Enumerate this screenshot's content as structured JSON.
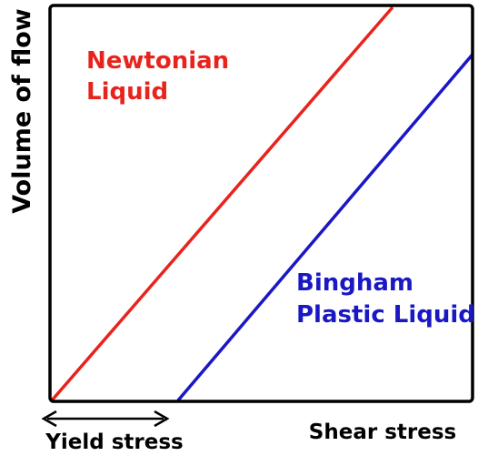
{
  "chart_data": {
    "type": "line",
    "xlabel": "Shear stress",
    "ylabel": "Volume of flow",
    "x_ticks": [],
    "y_ticks": [],
    "xlim": [
      0,
      1
    ],
    "ylim": [
      0,
      1
    ],
    "grid": false,
    "series": [
      {
        "name": "Newtonian Liquid",
        "label_lines": [
          "Newtonian",
          "Liquid"
        ],
        "color": "#e8231c",
        "x": [
          0,
          0.81
        ],
        "y": [
          0,
          1
        ]
      },
      {
        "name": "Bingham Plastic Liquid",
        "label_lines": [
          "Bingham",
          "Plastic Liquid"
        ],
        "color": "#1a17c4",
        "x": [
          0.3,
          1
        ],
        "y": [
          0,
          0.88
        ]
      }
    ],
    "annotations": [
      {
        "text": "Yield stress",
        "arrow": "double-headed",
        "from_x": 0,
        "to_x": 0.28
      }
    ]
  }
}
